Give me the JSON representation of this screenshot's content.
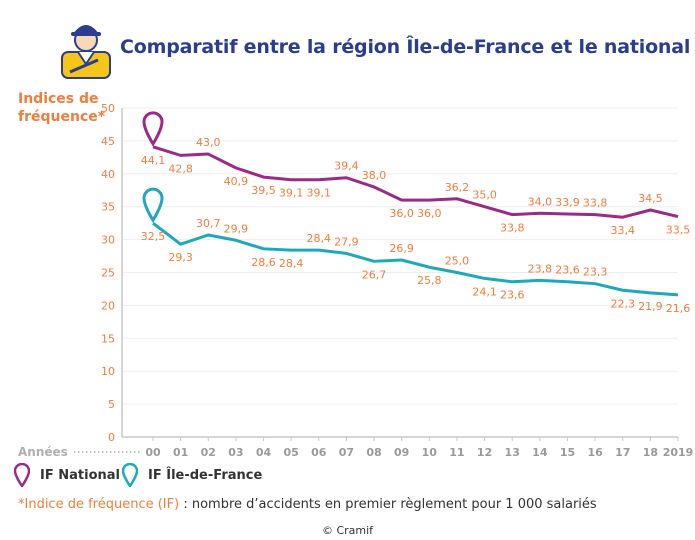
{
  "header": {
    "title": "Comparatif entre la région Île-de-France et le national",
    "logo_icon": "worker-hardhat-icon"
  },
  "chart_data": {
    "type": "line",
    "title": "Comparatif entre la région Île-de-France et le national",
    "ylabel": "Indices de\nfréquence*",
    "xlabel": "Années",
    "ylim": [
      0,
      50
    ],
    "yticks": [
      "0",
      "5",
      "10",
      "15",
      "20",
      "25",
      "30",
      "35",
      "40",
      "45",
      "50"
    ],
    "categories": [
      "00",
      "01",
      "02",
      "03",
      "04",
      "05",
      "06",
      "07",
      "08",
      "09",
      "10",
      "11",
      "12",
      "13",
      "14",
      "15",
      "16",
      "17",
      "18",
      "2019"
    ],
    "grid": true,
    "series": [
      {
        "name": "IF National",
        "color": "#9b2a86",
        "values": [
          44.1,
          42.8,
          43.0,
          40.9,
          39.5,
          39.1,
          39.1,
          39.4,
          38.0,
          36.0,
          36.0,
          36.2,
          35.0,
          33.8,
          34.0,
          33.9,
          33.8,
          33.4,
          34.5,
          33.5
        ],
        "labels": [
          "44,1",
          "42,8",
          "43,0",
          "40,9",
          "39,5",
          "39,1",
          "39,1",
          "39,4",
          "38,0",
          "36,0",
          "36,0",
          "36,2",
          "35,0",
          "33,8",
          "34,0",
          "33,9",
          "33,8",
          "33,4",
          "34,5",
          "33,5"
        ]
      },
      {
        "name": "IF Île-de-France",
        "color": "#1fa8b9",
        "values": [
          32.5,
          29.3,
          30.7,
          29.9,
          28.6,
          28.4,
          28.4,
          27.9,
          26.7,
          26.9,
          25.8,
          25.0,
          24.1,
          23.6,
          23.8,
          23.6,
          23.3,
          22.3,
          21.9,
          21.6
        ],
        "labels": [
          "32,5",
          "29,3",
          "30,7",
          "29,9",
          "28,6",
          "28,4",
          "28,4",
          "27,9",
          "26,7",
          "26,9",
          "25,8",
          "25,0",
          "24,1",
          "23,6",
          "23,8",
          "23,6",
          "23,3",
          "22,3",
          "21,9",
          "21,6"
        ]
      }
    ],
    "label_color": "#f07d3c",
    "axis_color": "#c8c8c8"
  },
  "legend": {
    "national_label": "IF National",
    "idf_label": "IF Île-de-France"
  },
  "footnote": {
    "highlight": "*Indice de fréquence (IF)",
    "text": " : nombre d’accidents en premier règlement pour 1 000 salariés"
  },
  "copyright": "© Cramif"
}
